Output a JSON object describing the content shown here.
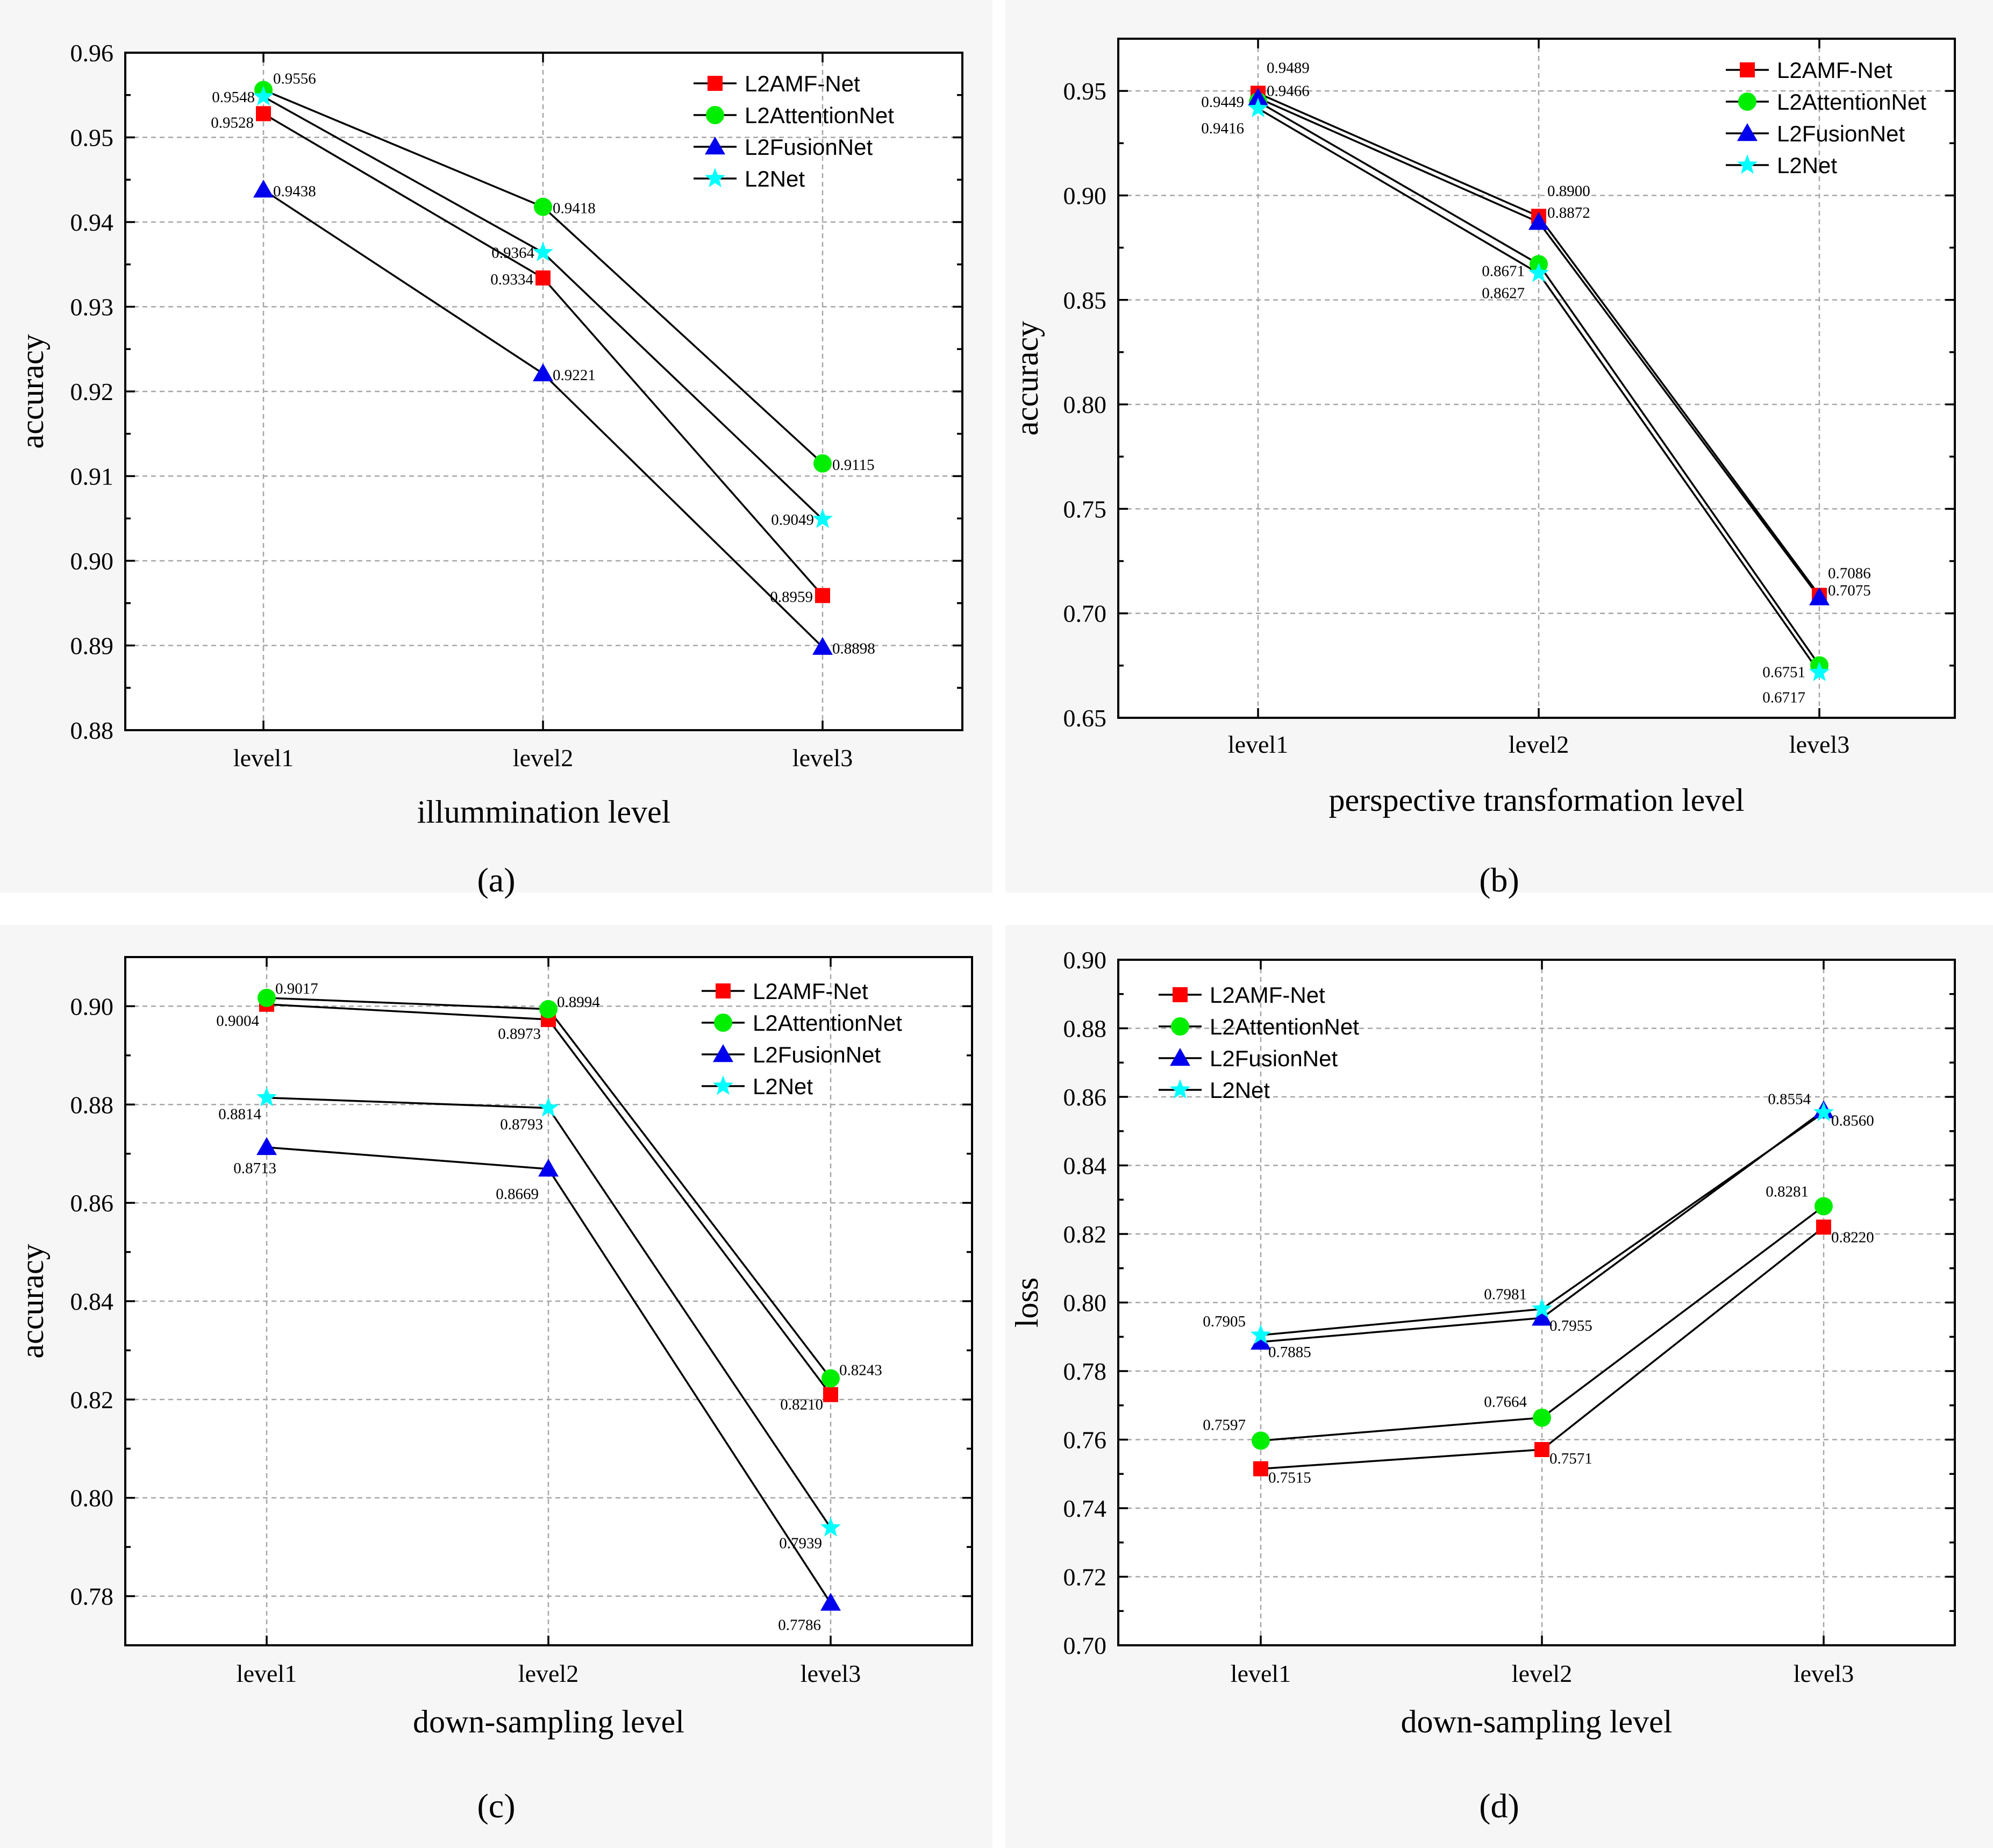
{
  "colors": {
    "L2AMF-Net": "#ff0000",
    "L2AttentionNet": "#00ee00",
    "L2FusionNet": "#0000ee",
    "L2Net": "#00ffff"
  },
  "markers": {
    "L2AMF-Net": "square",
    "L2AttentionNet": "circle",
    "L2FusionNet": "triangle",
    "L2Net": "star"
  },
  "chart_data": [
    {
      "id": "a",
      "type": "line",
      "panel_label": "(a)",
      "title": "",
      "xlabel": "illummination level",
      "ylabel": "accuracy",
      "categories": [
        "level1",
        "level2",
        "level3"
      ],
      "ylim": [
        0.88,
        0.96
      ],
      "yticks": [
        0.88,
        0.89,
        0.9,
        0.91,
        0.92,
        0.93,
        0.94,
        0.95,
        0.96
      ],
      "ytick_labels": [
        "0.88",
        "0.89",
        "0.90",
        "0.91",
        "0.92",
        "0.93",
        "0.94",
        "0.95",
        "0.96"
      ],
      "grid": true,
      "legend": "top-right",
      "series": [
        {
          "name": "L2AMF-Net",
          "values": [
            0.9528,
            0.9334,
            0.8959
          ],
          "labels": [
            "0.9528",
            "0.9334",
            "0.8959"
          ]
        },
        {
          "name": "L2AttentionNet",
          "values": [
            0.9556,
            0.9418,
            0.9115
          ],
          "labels": [
            "0.9556",
            "0.9418",
            "0.9115"
          ]
        },
        {
          "name": "L2FusionNet",
          "values": [
            0.9438,
            0.9221,
            0.8898
          ],
          "labels": [
            "0.9438",
            "0.9221",
            "0.8898"
          ]
        },
        {
          "name": "L2Net",
          "values": [
            0.9548,
            0.9364,
            0.9049
          ],
          "labels": [
            "0.9548",
            "0.9364",
            "0.9049"
          ]
        }
      ]
    },
    {
      "id": "b",
      "type": "line",
      "panel_label": "(b)",
      "title": "",
      "xlabel": "perspective transformation level",
      "ylabel": "accuracy",
      "categories": [
        "level1",
        "level2",
        "level3"
      ],
      "ylim": [
        0.65,
        0.975
      ],
      "yticks": [
        0.65,
        0.7,
        0.75,
        0.8,
        0.85,
        0.9,
        0.95
      ],
      "ytick_labels": [
        "0.65",
        "0.70",
        "0.75",
        "0.80",
        "0.85",
        "0.90",
        "0.95"
      ],
      "grid": true,
      "legend": "top-right",
      "series": [
        {
          "name": "L2AMF-Net",
          "values": [
            0.9489,
            0.89,
            0.7086
          ],
          "labels": [
            "0.9489",
            "0.8900",
            "0.7086"
          ]
        },
        {
          "name": "L2AttentionNet",
          "values": [
            0.9449,
            0.8671,
            0.6751
          ],
          "labels": [
            "0.9449",
            "0.8671",
            "0.6751"
          ]
        },
        {
          "name": "L2FusionNet",
          "values": [
            0.9466,
            0.8872,
            0.7075
          ],
          "labels": [
            "0.9466",
            "0.8872",
            "0.7075"
          ]
        },
        {
          "name": "L2Net",
          "values": [
            0.9416,
            0.8627,
            0.6717
          ],
          "labels": [
            "0.9416",
            "0.8627",
            "0.6717"
          ]
        }
      ]
    },
    {
      "id": "c",
      "type": "line",
      "panel_label": "(c)",
      "title": "",
      "xlabel": "down-sampling level",
      "ylabel": "accuracy",
      "categories": [
        "level1",
        "level2",
        "level3"
      ],
      "ylim": [
        0.77,
        0.91
      ],
      "yticks": [
        0.78,
        0.8,
        0.82,
        0.84,
        0.86,
        0.88,
        0.9
      ],
      "ytick_labels": [
        "0.78",
        "0.80",
        "0.82",
        "0.84",
        "0.86",
        "0.88",
        "0.90"
      ],
      "grid": true,
      "legend": "top-right",
      "series": [
        {
          "name": "L2AMF-Net",
          "values": [
            0.9004,
            0.8973,
            0.821
          ],
          "labels": [
            "0.9004",
            "0.8973",
            "0.8210"
          ]
        },
        {
          "name": "L2AttentionNet",
          "values": [
            0.9017,
            0.8994,
            0.8243
          ],
          "labels": [
            "0.9017",
            "0.8994",
            "0.8243"
          ]
        },
        {
          "name": "L2FusionNet",
          "values": [
            0.8713,
            0.8669,
            0.7786
          ],
          "labels": [
            "0.8713",
            "0.8669",
            "0.7786"
          ]
        },
        {
          "name": "L2Net",
          "values": [
            0.8814,
            0.8793,
            0.7939
          ],
          "labels": [
            "0.8814",
            "0.8793",
            "0.7939"
          ]
        }
      ]
    },
    {
      "id": "d",
      "type": "line",
      "panel_label": "(d)",
      "title": "",
      "xlabel": "down-sampling level",
      "ylabel": "loss",
      "categories": [
        "level1",
        "level2",
        "level3"
      ],
      "ylim": [
        0.7,
        0.9
      ],
      "yticks": [
        0.7,
        0.72,
        0.74,
        0.76,
        0.78,
        0.8,
        0.82,
        0.84,
        0.86,
        0.88,
        0.9
      ],
      "ytick_labels": [
        "0.70",
        "0.72",
        "0.74",
        "0.76",
        "0.78",
        "0.80",
        "0.82",
        "0.84",
        "0.86",
        "0.88",
        "0.90"
      ],
      "grid": true,
      "legend": "top-left",
      "series": [
        {
          "name": "L2AMF-Net",
          "values": [
            0.7515,
            0.7571,
            0.822
          ],
          "labels": [
            "0.7515",
            "0.7571",
            "0.8220"
          ]
        },
        {
          "name": "L2AttentionNet",
          "values": [
            0.7597,
            0.7664,
            0.8281
          ],
          "labels": [
            "0.7597",
            "0.7664",
            "0.8281"
          ]
        },
        {
          "name": "L2FusionNet",
          "values": [
            0.7885,
            0.7955,
            0.856
          ],
          "labels": [
            "0.7885",
            "0.7955",
            "0.8560"
          ]
        },
        {
          "name": "L2Net",
          "values": [
            0.7905,
            0.7981,
            0.8554
          ],
          "labels": [
            "0.7905",
            "0.7981",
            "0.8554"
          ]
        }
      ]
    }
  ]
}
